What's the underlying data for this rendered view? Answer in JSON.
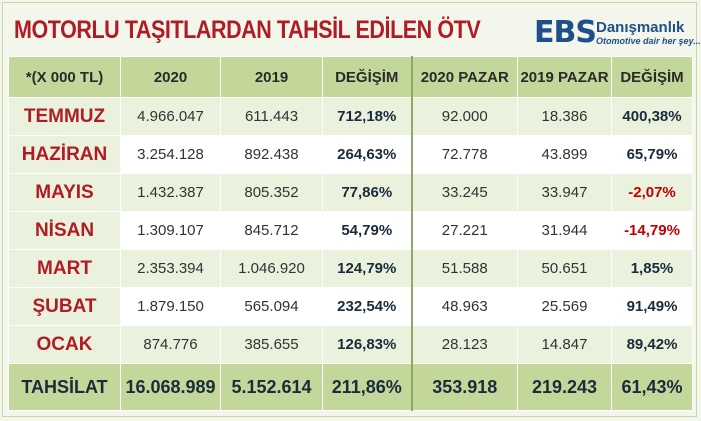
{
  "title": "MOTORLU TAŞITLARDAN TAHSİL EDİLEN ÖTV",
  "logo": {
    "mark": "EBS",
    "name": "Danışmanlık",
    "tagline": "Otomotive dair her şey..."
  },
  "columns": [
    "*(X 000 TL)",
    "2020",
    "2019",
    "DEĞİŞİM",
    "2020 PAZAR",
    "2019 PAZAR",
    "DEĞİŞİM"
  ],
  "rows": [
    {
      "month": "TEMMUZ",
      "y2020": "4.966.047",
      "y2019": "611.443",
      "chg": "712,18%",
      "p2020": "92.000",
      "p2019": "18.386",
      "pchg": "400,38%"
    },
    {
      "month": "HAZİRAN",
      "y2020": "3.254.128",
      "y2019": "892.438",
      "chg": "264,63%",
      "p2020": "72.778",
      "p2019": "43.899",
      "pchg": "65,79%"
    },
    {
      "month": "MAYIS",
      "y2020": "1.432.387",
      "y2019": "805.352",
      "chg": "77,86%",
      "p2020": "33.245",
      "p2019": "33.947",
      "pchg": "-2,07%"
    },
    {
      "month": "NİSAN",
      "y2020": "1.309.107",
      "y2019": "845.712",
      "chg": "54,79%",
      "p2020": "27.221",
      "p2019": "31.944",
      "pchg": "-14,79%"
    },
    {
      "month": "MART",
      "y2020": "2.353.394",
      "y2019": "1.046.920",
      "chg": "124,79%",
      "p2020": "51.588",
      "p2019": "50.651",
      "pchg": "1,85%"
    },
    {
      "month": "ŞUBAT",
      "y2020": "1.879.150",
      "y2019": "565.094",
      "chg": "232,54%",
      "p2020": "48.963",
      "p2019": "25.569",
      "pchg": "91,49%"
    },
    {
      "month": "OCAK",
      "y2020": "874.776",
      "y2019": "385.655",
      "chg": "126,83%",
      "p2020": "28.123",
      "p2019": "14.847",
      "pchg": "89,42%"
    }
  ],
  "total": {
    "label": "TAHSİLAT",
    "y2020": "16.068.989",
    "y2019": "5.152.614",
    "chg": "211,86%",
    "p2020": "353.918",
    "p2019": "219.243",
    "pchg": "61,43%"
  },
  "colors": {
    "title": "#b01c26",
    "header_bg": "#c4d79b",
    "row_alt_bg": "#eaf1dc",
    "negative": "#c00000",
    "logo": "#1f4f8c"
  }
}
